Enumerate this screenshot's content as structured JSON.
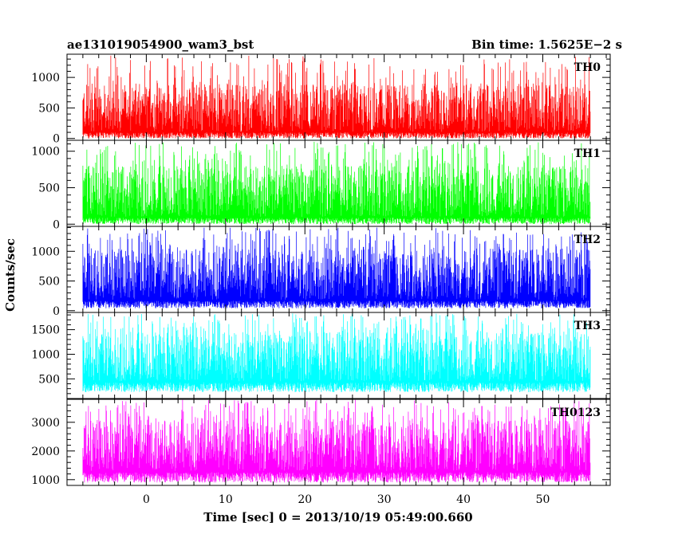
{
  "header": {
    "left_title": "ae131019054900_wam3_bst",
    "right_title": "Bin time: 1.5625E−2 s"
  },
  "axes": {
    "xlabel": "Time [sec] 0 = 2013/10/19 05:49:00.660",
    "ylabel": "Counts/sec"
  },
  "chart_data": {
    "type": "line",
    "title": "ae131019054900_wam3_bst",
    "subtitle": "Bin time: 1.5625E−2 s",
    "xlabel": "Time [sec] 0 = 2013/10/19 05:49:00.660",
    "ylabel": "Counts/sec",
    "bin_time_s": 0.015625,
    "x_range_data": [
      -8,
      56
    ],
    "xlim": [
      -10,
      58.5
    ],
    "xticks": [
      0,
      10,
      20,
      30,
      40,
      50
    ],
    "x_tick_labels": [
      "0",
      "10",
      "20",
      "30",
      "40",
      "50"
    ],
    "panels": [
      {
        "name": "TH0",
        "color": "#ff0000",
        "ylim": [
          -30,
          1380
        ],
        "yticks": [
          0,
          500,
          1000
        ],
        "ytick_labels": [
          "0",
          "500",
          "1000"
        ],
        "level_low": 110,
        "level_high": 900,
        "spike_max": 1360,
        "floor": 0
      },
      {
        "name": "TH1",
        "color": "#00ff00",
        "ylim": [
          -30,
          1150
        ],
        "yticks": [
          0,
          500,
          1000
        ],
        "ytick_labels": [
          "0",
          "500",
          "1000"
        ],
        "level_low": 100,
        "level_high": 800,
        "spike_max": 1130,
        "floor": 0
      },
      {
        "name": "TH2",
        "color": "#0000ff",
        "ylim": [
          -30,
          1420
        ],
        "yticks": [
          0,
          500,
          1000
        ],
        "ytick_labels": [
          "0",
          "500",
          "1000"
        ],
        "level_low": 180,
        "level_high": 1050,
        "spike_max": 1400,
        "floor": 40
      },
      {
        "name": "TH3",
        "color": "#00ffff",
        "ylim": [
          100,
          1850
        ],
        "yticks": [
          500,
          1000,
          1500
        ],
        "ytick_labels": [
          "500",
          "1000",
          "1500"
        ],
        "level_low": 450,
        "level_high": 1450,
        "spike_max": 1830,
        "floor": 230
      },
      {
        "name": "TH0123",
        "color": "#ff00ff",
        "ylim": [
          800,
          3800
        ],
        "yticks": [
          1000,
          2000,
          3000
        ],
        "ytick_labels": [
          "1000",
          "2000",
          "3000"
        ],
        "level_low": 1300,
        "level_high": 3100,
        "spike_max": 3780,
        "floor": 900
      }
    ]
  }
}
